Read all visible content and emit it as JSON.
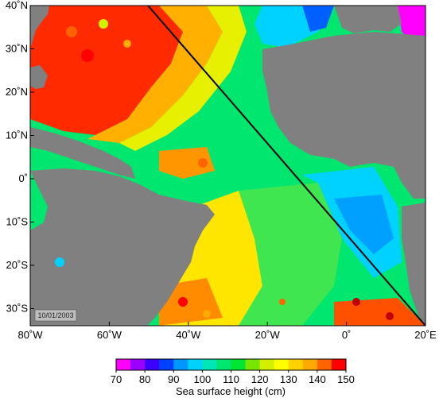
{
  "map": {
    "date_label": "10/01/2003",
    "longitude_ticks": [
      "80˚W",
      "60˚W",
      "40˚W",
      "20˚W",
      "0˚",
      "20˚E"
    ],
    "latitude_ticks": [
      "40˚N",
      "30˚N",
      "20˚N",
      "10˚N",
      "0˚",
      "10˚S",
      "20˚S",
      "30˚S"
    ],
    "colorbar": {
      "title": "Sea surface height (cm)",
      "tick_labels": [
        "70",
        "80",
        "90",
        "100",
        "110",
        "120",
        "130",
        "140",
        "150"
      ],
      "colors": [
        "#ff00ff",
        "#9a00ff",
        "#3c00ff",
        "#0040ff",
        "#0096ff",
        "#00d2ff",
        "#00e6b4",
        "#00e66e",
        "#00e632",
        "#78e600",
        "#d2f000",
        "#ffff00",
        "#ffd200",
        "#ffaa00",
        "#ff6400",
        "#ff0000"
      ]
    },
    "land_color": "#808080",
    "ocean_fill_note": ""
  }
}
